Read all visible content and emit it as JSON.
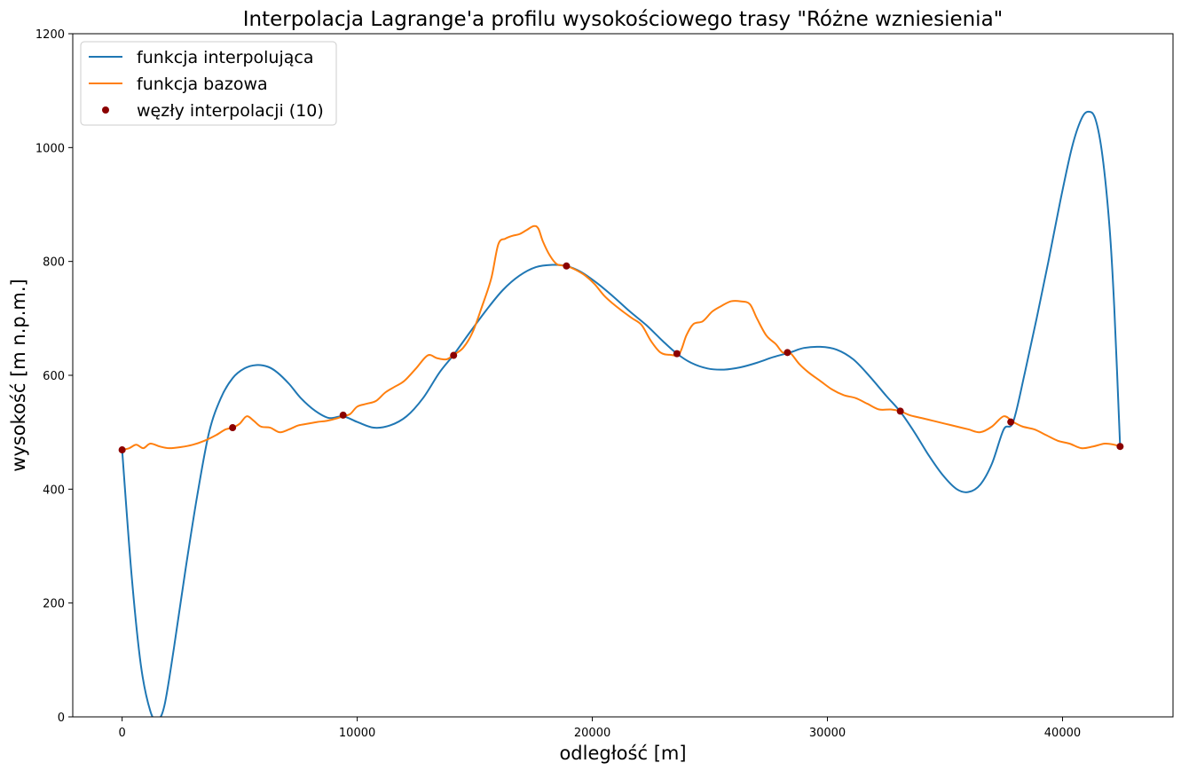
{
  "chart_data": {
    "type": "line",
    "title": "Interpolacja Lagrange'a profilu wysokościowego trasy \"Różne wzniesienia\"",
    "xlabel": "odległość [m]",
    "ylabel": "wysokość [m n.p.m.]",
    "xlim": [
      -2100,
      44700
    ],
    "ylim": [
      0,
      1200
    ],
    "xticks": [
      0,
      10000,
      20000,
      30000,
      40000
    ],
    "yticks": [
      0,
      200,
      400,
      600,
      800,
      1000,
      1200
    ],
    "grid": false,
    "legend_position": "upper-left",
    "colors": {
      "interpolating": "#1f77b4",
      "base": "#ff7f0e",
      "nodes": "#8b0000"
    },
    "series": [
      {
        "name": "funkcja interpolująca",
        "kind": "line",
        "x": [
          0,
          400,
          800,
          1200,
          1500,
          1800,
          2200,
          2700,
          3200,
          3700,
          4200,
          4700,
          5200,
          5700,
          6200,
          6600,
          7100,
          7600,
          8200,
          8800,
          9400,
          10000,
          10700,
          11400,
          12100,
          12800,
          13500,
          14100,
          14800,
          15500,
          16200,
          16900,
          17600,
          18300,
          18900,
          19500,
          20200,
          20900,
          21600,
          22300,
          23000,
          23600,
          24200,
          24900,
          25600,
          26300,
          27000,
          27700,
          28400,
          29000,
          29700,
          30400,
          31100,
          31800,
          32500,
          33100,
          33700,
          34300,
          34900,
          35500,
          36000,
          36500,
          37000,
          37500,
          37900,
          38400,
          38900,
          39400,
          39900,
          40400,
          40800,
          41100,
          41400,
          41700,
          42000,
          42200,
          42450
        ],
        "y": [
          469,
          250,
          90,
          10,
          -5,
          20,
          120,
          260,
          390,
          500,
          560,
          595,
          612,
          618,
          615,
          605,
          585,
          560,
          538,
          525,
          528,
          518,
          508,
          512,
          528,
          560,
          605,
          636,
          676,
          715,
          750,
          775,
          790,
          794,
          792,
          782,
          762,
          738,
          712,
          688,
          660,
          638,
          622,
          612,
          610,
          614,
          622,
          632,
          640,
          648,
          650,
          645,
          628,
          598,
          564,
          536,
          500,
          460,
          425,
          400,
          395,
          408,
          445,
          505,
          518,
          605,
          700,
          800,
          905,
          1000,
          1050,
          1063,
          1050,
          985,
          860,
          720,
          475
        ]
      },
      {
        "name": "funkcja bazowa",
        "kind": "line",
        "x": [
          0,
          300,
          600,
          900,
          1200,
          1600,
          2000,
          2500,
          3000,
          3500,
          4000,
          4400,
          4700,
          5000,
          5300,
          5600,
          5900,
          6300,
          6700,
          7100,
          7500,
          7900,
          8300,
          8700,
          9100,
          9400,
          9700,
          10000,
          10400,
          10800,
          11200,
          11600,
          12000,
          12500,
          13000,
          13400,
          13800,
          14100,
          14500,
          14900,
          15300,
          15700,
          16000,
          16300,
          16600,
          16900,
          17200,
          17500,
          17700,
          17900,
          18200,
          18500,
          18900,
          19300,
          19700,
          20100,
          20500,
          20900,
          21300,
          21700,
          22100,
          22500,
          22900,
          23300,
          23700,
          24000,
          24300,
          24700,
          25100,
          25500,
          25900,
          26300,
          26700,
          27000,
          27400,
          27800,
          28100,
          28400,
          28800,
          29200,
          29700,
          30200,
          30700,
          31200,
          31700,
          32200,
          32700,
          33100,
          33500,
          34000,
          34500,
          35000,
          35500,
          36000,
          36500,
          37000,
          37500,
          37900,
          38300,
          38800,
          39300,
          39800,
          40300,
          40800,
          41300,
          41800,
          42200,
          42450
        ],
        "y": [
          469,
          472,
          478,
          472,
          480,
          475,
          472,
          474,
          478,
          485,
          495,
          505,
          508,
          515,
          528,
          520,
          510,
          508,
          500,
          505,
          512,
          515,
          518,
          520,
          524,
          528,
          532,
          545,
          550,
          555,
          570,
          580,
          590,
          612,
          635,
          630,
          628,
          636,
          648,
          675,
          720,
          770,
          830,
          840,
          845,
          848,
          855,
          862,
          858,
          835,
          810,
          795,
          792,
          785,
          775,
          760,
          740,
          725,
          712,
          700,
          688,
          660,
          640,
          636,
          638,
          670,
          690,
          695,
          712,
          722,
          730,
          730,
          725,
          700,
          670,
          655,
          640,
          640,
          620,
          605,
          590,
          575,
          565,
          560,
          550,
          540,
          540,
          537,
          530,
          525,
          520,
          515,
          510,
          505,
          500,
          510,
          528,
          518,
          510,
          505,
          495,
          485,
          480,
          472,
          475,
          480,
          478,
          475
        ]
      },
      {
        "name": "węzły interpolacji (10)",
        "kind": "scatter",
        "x": [
          0,
          4700,
          9400,
          14100,
          18900,
          23600,
          28300,
          33100,
          37800,
          42450
        ],
        "y": [
          469,
          508,
          530,
          635,
          792,
          638,
          640,
          537,
          518,
          475
        ]
      }
    ]
  }
}
